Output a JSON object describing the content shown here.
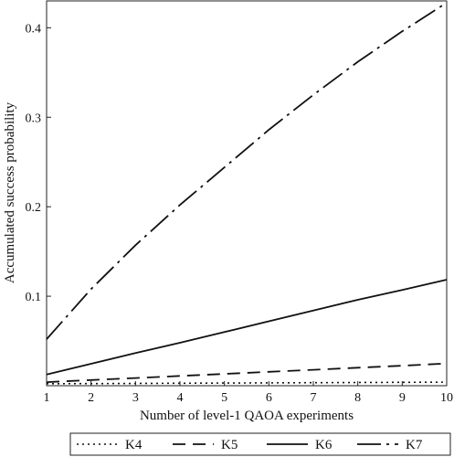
{
  "chart_data": {
    "type": "line",
    "title": "",
    "xlabel": "Number of level-1 QAOA experiments",
    "ylabel": "Accumulated success probability",
    "xlim": [
      1,
      10
    ],
    "ylim": [
      0,
      0.43
    ],
    "x_ticks": [
      1,
      2,
      3,
      4,
      5,
      6,
      7,
      8,
      9,
      10
    ],
    "y_ticks": [
      0.1,
      0.2,
      0.3,
      0.4
    ],
    "y_tick_labels": [
      "0.1",
      "0.2",
      "0.3",
      "0.4"
    ],
    "grid": false,
    "legend_position": "bottom",
    "x": [
      1,
      2,
      3,
      4,
      5,
      6,
      7,
      8,
      9,
      10
    ],
    "series": [
      {
        "name": "K4",
        "style": "dotted",
        "values": [
          0.0022,
          0.0024,
          0.0026,
          0.0028,
          0.003,
          0.0032,
          0.0034,
          0.0036,
          0.0038,
          0.004
        ]
      },
      {
        "name": "K5",
        "style": "dashed",
        "values": [
          0.004,
          0.0063,
          0.0086,
          0.0109,
          0.0132,
          0.0155,
          0.0178,
          0.0201,
          0.0224,
          0.0248
        ]
      },
      {
        "name": "K6",
        "style": "solid",
        "values": [
          0.0125,
          0.0245,
          0.0365,
          0.048,
          0.06,
          0.072,
          0.084,
          0.096,
          0.107,
          0.1185
        ]
      },
      {
        "name": "K7",
        "style": "long-dash-dot",
        "values": [
          0.052,
          0.108,
          0.157,
          0.202,
          0.244,
          0.286,
          0.325,
          0.362,
          0.396,
          0.428
        ]
      }
    ]
  }
}
